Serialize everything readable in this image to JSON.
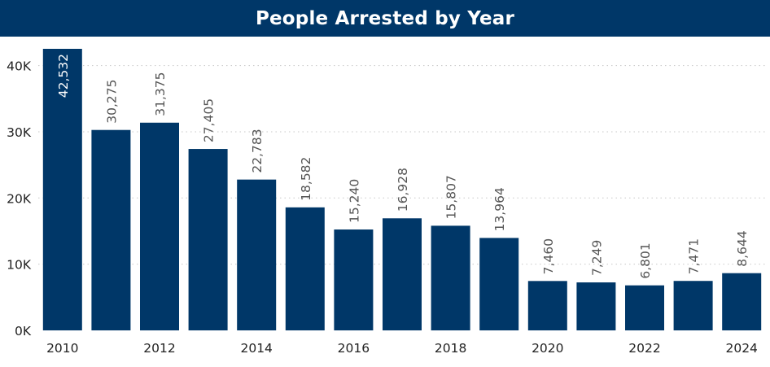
{
  "header": {
    "title": "People Arrested by Year"
  },
  "colors": {
    "bar": "#003768",
    "header": "#003768",
    "grid": "#c8c8c8"
  },
  "chart_data": {
    "type": "bar",
    "title": "People Arrested by Year",
    "xlabel": "",
    "ylabel": "",
    "categories": [
      "2010",
      "2011",
      "2012",
      "2013",
      "2014",
      "2015",
      "2016",
      "2017",
      "2018",
      "2019",
      "2020",
      "2021",
      "2022",
      "2023",
      "2024"
    ],
    "values": [
      42532,
      30275,
      31375,
      27405,
      22783,
      18582,
      15240,
      16928,
      15807,
      13964,
      7460,
      7249,
      6801,
      7471,
      8644
    ],
    "data_labels": [
      "42,532",
      "30,275",
      "31,375",
      "27,405",
      "22,783",
      "18,582",
      "15,240",
      "16,928",
      "15,807",
      "13,964",
      "7,460",
      "7,249",
      "6,801",
      "7,471",
      "8,644"
    ],
    "x_tick_labels": [
      "2010",
      "",
      "2012",
      "",
      "2014",
      "",
      "2016",
      "",
      "2018",
      "",
      "2020",
      "",
      "2022",
      "",
      "2024"
    ],
    "y_ticks": [
      0,
      10000,
      20000,
      30000,
      40000
    ],
    "y_tick_labels": [
      "0K",
      "10K",
      "20K",
      "30K",
      "40K"
    ],
    "ylim": [
      0,
      42532
    ],
    "grid": "dotted horizontal",
    "legend": "none"
  }
}
